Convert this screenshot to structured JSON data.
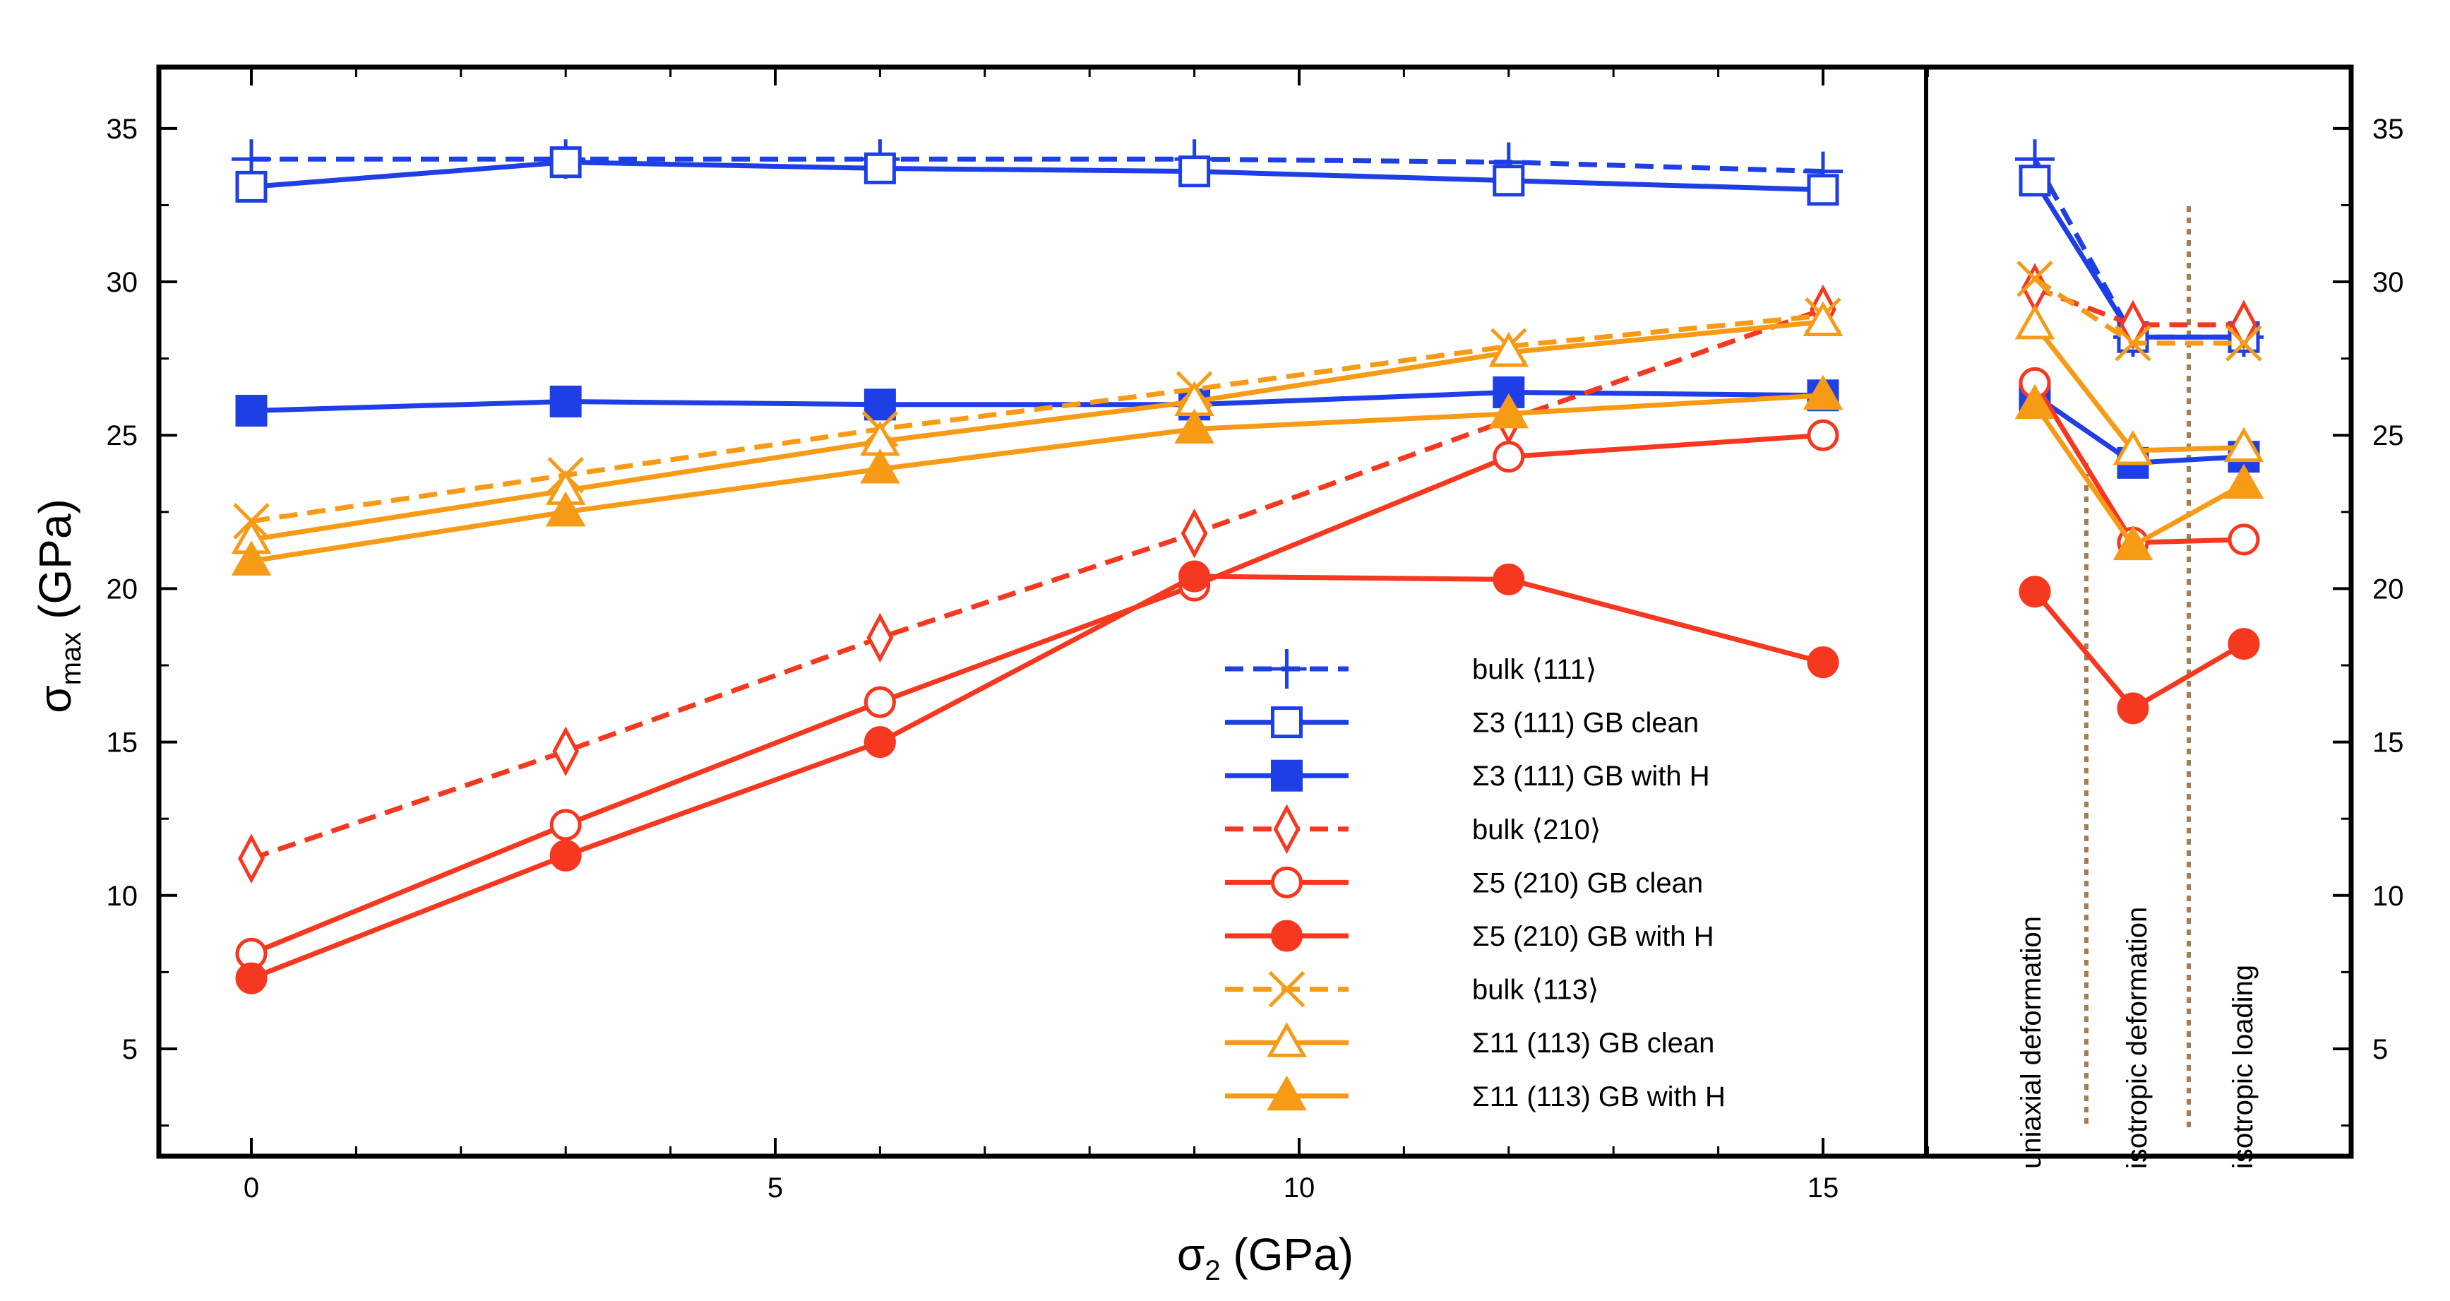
{
  "chart_data": [
    {
      "type": "line",
      "panel": "main",
      "xlabel": {
        "symbol": "σ",
        "sub": "2",
        "unit": "(GPa)"
      },
      "ylabel": {
        "symbol": "σ",
        "sub": "max",
        "unit": "(GPa)"
      },
      "xlim": [
        -0.9,
        16
      ],
      "ylim": [
        1.5,
        37
      ],
      "x_major_ticks": [
        0,
        5,
        10,
        15
      ],
      "y_major_ticks": [
        5,
        10,
        15,
        20,
        25,
        30,
        35
      ],
      "grid": false,
      "legend_position": "bottom-right",
      "x": [
        0,
        3,
        6,
        9,
        12,
        15
      ],
      "series": [
        {
          "name": "bulk ⟨111⟩",
          "color": "#1f3fe6",
          "dash": true,
          "marker": "plus",
          "values": [
            34.0,
            34.0,
            34.0,
            34.0,
            33.9,
            33.6
          ]
        },
        {
          "name": "Σ3 (111) GB clean",
          "color": "#1f3fe6",
          "dash": false,
          "marker": "square-open",
          "values": [
            33.1,
            33.9,
            33.7,
            33.6,
            33.3,
            33.0
          ]
        },
        {
          "name": "Σ3 (111) GB with H",
          "color": "#1f3fe6",
          "dash": false,
          "marker": "square-filled",
          "values": [
            25.8,
            26.1,
            26.0,
            26.0,
            26.4,
            26.3
          ]
        },
        {
          "name": "bulk ⟨210⟩",
          "color": "#f5381f",
          "dash": true,
          "marker": "diamond-open",
          "values": [
            11.2,
            14.7,
            18.4,
            21.8,
            25.5,
            29.1
          ]
        },
        {
          "name": "Σ5 (210) GB clean",
          "color": "#f5381f",
          "dash": false,
          "marker": "circle-open",
          "values": [
            8.1,
            12.3,
            16.3,
            20.1,
            24.3,
            25.0
          ]
        },
        {
          "name": "Σ5 (210) GB with H",
          "color": "#f5381f",
          "dash": false,
          "marker": "circle-filled",
          "values": [
            7.3,
            11.3,
            15.0,
            20.4,
            20.3,
            17.6
          ]
        },
        {
          "name": "bulk ⟨113⟩",
          "color": "#f79a16",
          "dash": true,
          "marker": "x",
          "values": [
            22.2,
            23.7,
            25.2,
            26.5,
            27.9,
            28.9
          ]
        },
        {
          "name": "Σ11 (113) GB clean",
          "color": "#f79a16",
          "dash": false,
          "marker": "triangle-open",
          "values": [
            21.6,
            23.2,
            24.8,
            26.1,
            27.7,
            28.7
          ]
        },
        {
          "name": "Σ11 (113) GB with H",
          "color": "#f79a16",
          "dash": false,
          "marker": "triangle-filled",
          "values": [
            20.9,
            22.5,
            23.9,
            25.2,
            25.7,
            26.3
          ]
        }
      ]
    },
    {
      "type": "line",
      "panel": "right",
      "ylim": [
        1.5,
        37
      ],
      "y_major_ticks": [
        5,
        10,
        15,
        20,
        25,
        30,
        35
      ],
      "categories": [
        "uniaxial deformation",
        "isotropic deformation",
        "isotropic loading"
      ],
      "series": [
        {
          "name": "bulk ⟨111⟩",
          "values": [
            34.0,
            28.2,
            28.2
          ]
        },
        {
          "name": "Σ3 (111) GB clean",
          "values": [
            33.3,
            28.2,
            28.2
          ]
        },
        {
          "name": "Σ3 (111) GB with H",
          "values": [
            26.3,
            24.1,
            24.3
          ]
        },
        {
          "name": "bulk ⟨210⟩",
          "values": [
            29.8,
            28.6,
            28.6
          ]
        },
        {
          "name": "Σ5 (210) GB clean",
          "values": [
            26.7,
            21.5,
            21.6
          ]
        },
        {
          "name": "Σ5 (210) GB with H",
          "values": [
            19.9,
            16.1,
            18.2
          ]
        },
        {
          "name": "bulk ⟨113⟩",
          "values": [
            30.1,
            28.0,
            28.0
          ]
        },
        {
          "name": "Σ11 (113) GB clean",
          "values": [
            28.6,
            24.5,
            24.6
          ]
        },
        {
          "name": "Σ11 (113) GB with H",
          "values": [
            26.0,
            21.4,
            23.4
          ]
        }
      ]
    }
  ]
}
